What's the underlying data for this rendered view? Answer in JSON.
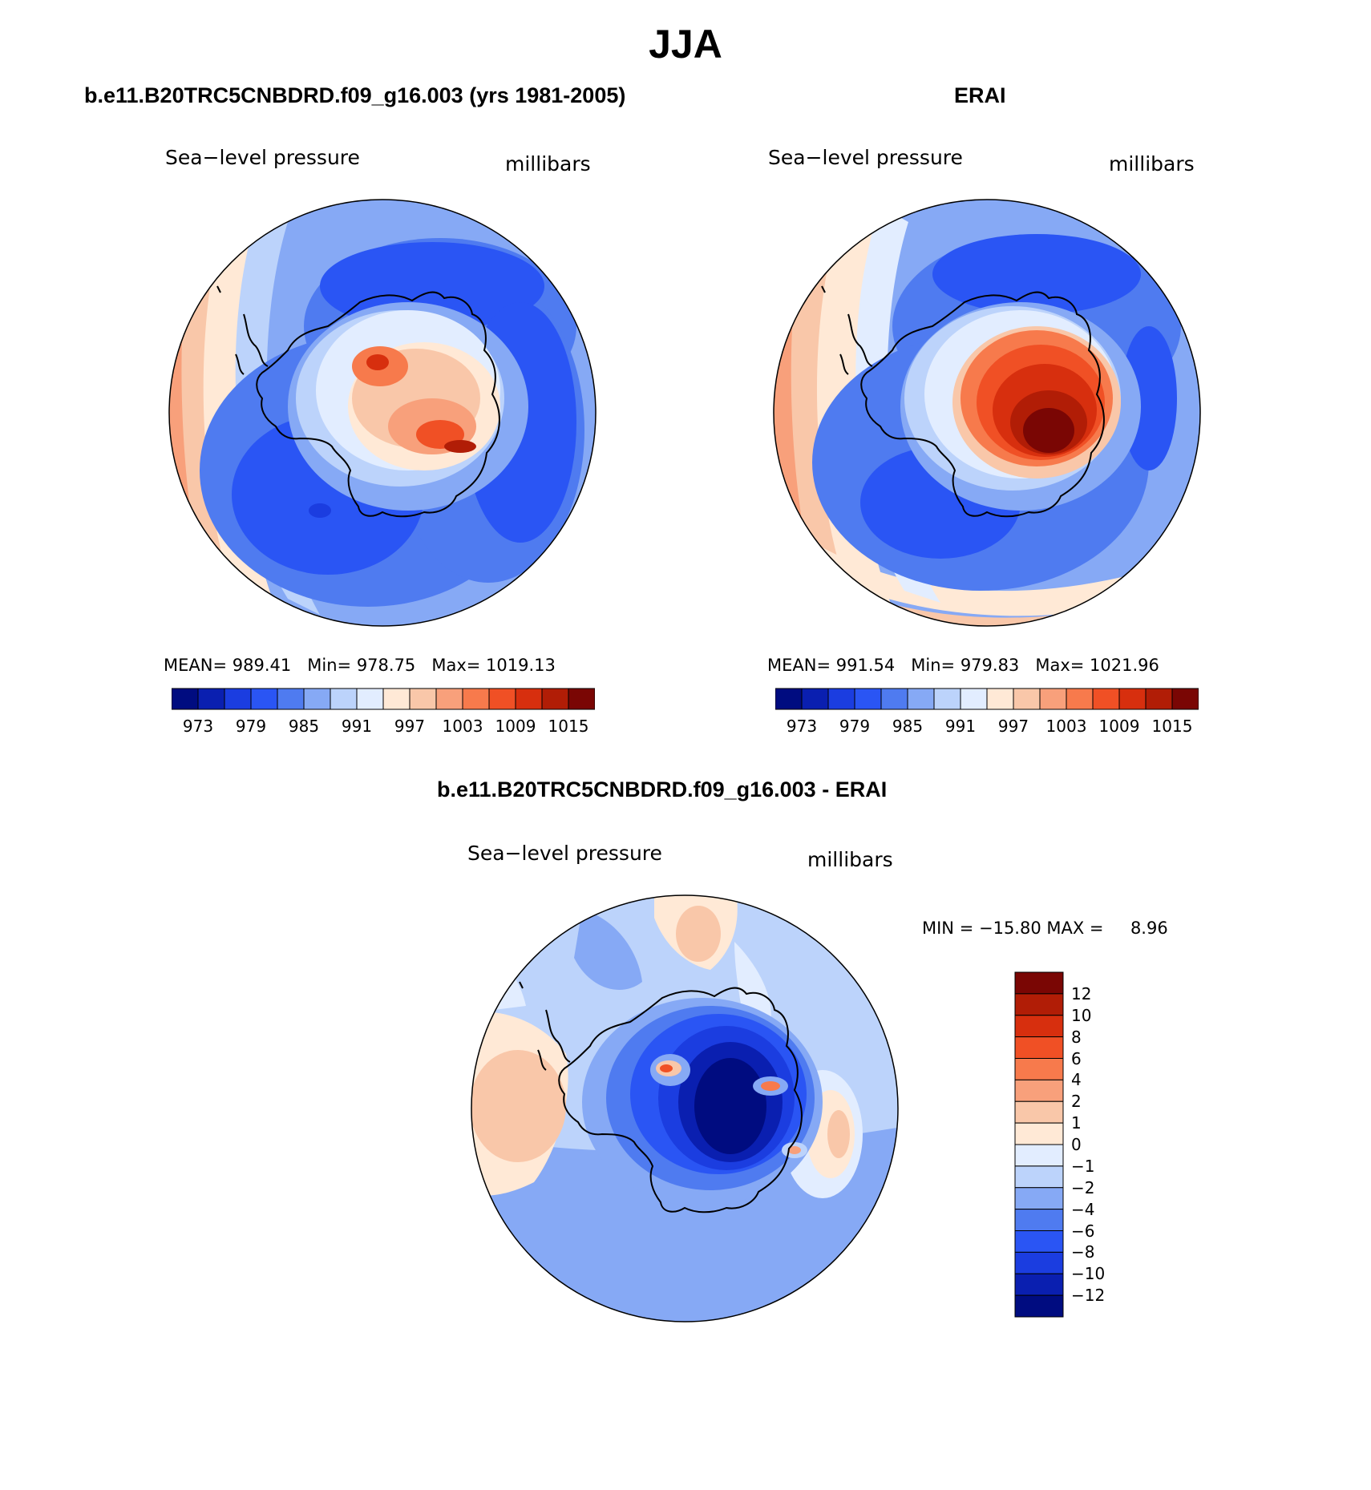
{
  "figure": {
    "title": "JJA"
  },
  "panels": [
    {
      "title": "b.e11.B20TRC5CNBDRD.f09_g16.003 (yrs 1981-2005)",
      "variable": "Sea−level pressure",
      "units": "millibars",
      "stats": {
        "mean_label": "MEAN=",
        "mean": "989.41",
        "min_label": "Min=",
        "min": "978.75",
        "max_label": "Max=",
        "max": "1019.13"
      },
      "colorbar": {
        "colors": [
          "#000c80",
          "#0a1fb0",
          "#1b3de0",
          "#2a55f4",
          "#4f7bf0",
          "#86a9f5",
          "#bcd3fb",
          "#e2edff",
          "#ffe9d6",
          "#f9c7a9",
          "#f8a07b",
          "#f77a4c",
          "#f05025",
          "#d72f0e",
          "#b11d06",
          "#7a0604"
        ],
        "tick_labels": [
          "973",
          "979",
          "985",
          "991",
          "997",
          "1003",
          "1009",
          "1015"
        ]
      }
    },
    {
      "title": "ERAI",
      "variable": "Sea−level pressure",
      "units": "millibars",
      "stats": {
        "mean_label": "MEAN=",
        "mean": "991.54",
        "min_label": "Min=",
        "min": "979.83",
        "max_label": "Max=",
        "max": "1021.96"
      },
      "colorbar": {
        "colors": [
          "#000c80",
          "#0a1fb0",
          "#1b3de0",
          "#2a55f4",
          "#4f7bf0",
          "#86a9f5",
          "#bcd3fb",
          "#e2edff",
          "#ffe9d6",
          "#f9c7a9",
          "#f8a07b",
          "#f77a4c",
          "#f05025",
          "#d72f0e",
          "#b11d06",
          "#7a0604"
        ],
        "tick_labels": [
          "973",
          "979",
          "985",
          "991",
          "997",
          "1003",
          "1009",
          "1015"
        ]
      }
    },
    {
      "title": "b.e11.B20TRC5CNBDRD.f09_g16.003 - ERAI",
      "variable": "Sea−level pressure",
      "units": "millibars",
      "stats": {
        "min_label": "MIN =",
        "min": "−15.80",
        "max_label": "MAX =",
        "max": "8.96"
      },
      "colorbar": {
        "colors": [
          "#7a0604",
          "#b11d06",
          "#d72f0e",
          "#f05025",
          "#f77a4c",
          "#f8a07b",
          "#f9c7a9",
          "#ffe9d6",
          "#e2edff",
          "#bcd3fb",
          "#86a9f5",
          "#4f7bf0",
          "#2a55f4",
          "#1b3de0",
          "#0a1fb0",
          "#000c80"
        ],
        "tick_labels": [
          "12",
          "10",
          "8",
          "6",
          "4",
          "2",
          "1",
          "0",
          "−1",
          "−2",
          "−4",
          "−6",
          "−8",
          "−10",
          "−12"
        ]
      }
    }
  ]
}
